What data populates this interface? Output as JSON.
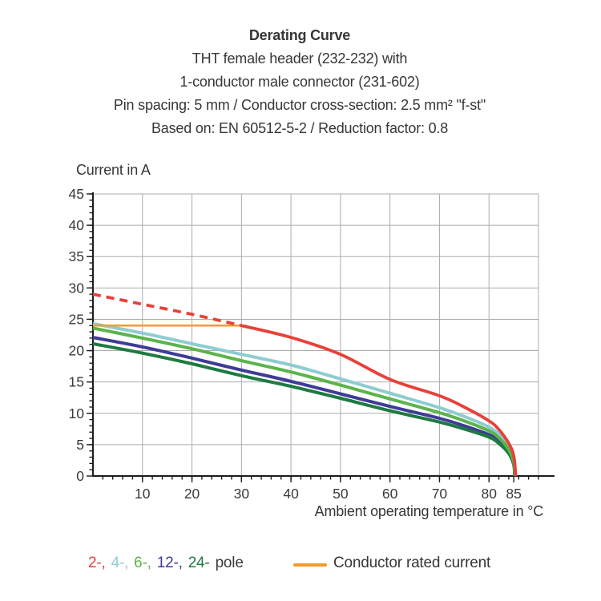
{
  "header": {
    "title": "Derating Curve",
    "lines": [
      "THT female header (232-232) with",
      "1-conductor male connector (231-602)",
      "Pin spacing: 5 mm / Conductor cross-section: 2.5 mm² \"f-st\"",
      "Based on: EN 60512-5-2 / Reduction factor: 0.8"
    ]
  },
  "chart_data": {
    "type": "line",
    "title": "Derating Curve",
    "xlabel": "Ambient operating temperature in °C",
    "ylabel": "Current in A",
    "xlim": [
      0,
      90
    ],
    "ylim": [
      0,
      45
    ],
    "grid": true,
    "x_grid_step": 10,
    "y_grid_step": 5,
    "x_minor_tick_step": 2,
    "y_minor_tick_step": 1,
    "x_major_ticks": [
      10,
      20,
      30,
      40,
      50,
      60,
      70,
      80,
      85
    ],
    "y_major_ticks": [
      0,
      5,
      10,
      15,
      20,
      25,
      30,
      35,
      40,
      45
    ],
    "series": [
      {
        "name": "4-pole",
        "color": "#8fccd1",
        "width": 4,
        "segments": [
          {
            "style": "solid",
            "points": [
              [
                0,
                24.3
              ],
              [
                10,
                22.8
              ],
              [
                20,
                21.1
              ],
              [
                30,
                19.4
              ],
              [
                40,
                17.7
              ],
              [
                50,
                15.5
              ],
              [
                60,
                13.2
              ],
              [
                70,
                10.9
              ],
              [
                75,
                9.5
              ],
              [
                80,
                7.8
              ],
              [
                82,
                6.6
              ],
              [
                84,
                4.6
              ],
              [
                85,
                2.6
              ],
              [
                85.3,
                0
              ]
            ]
          }
        ]
      },
      {
        "name": "12-pole",
        "color": "#3e3c96",
        "width": 4,
        "segments": [
          {
            "style": "solid",
            "points": [
              [
                0,
                22.1
              ],
              [
                10,
                20.6
              ],
              [
                20,
                18.8
              ],
              [
                30,
                16.9
              ],
              [
                40,
                15.1
              ],
              [
                50,
                13.1
              ],
              [
                60,
                11.1
              ],
              [
                70,
                9.2
              ],
              [
                75,
                8.0
              ],
              [
                80,
                6.6
              ],
              [
                82,
                5.6
              ],
              [
                84,
                3.9
              ],
              [
                85,
                2.0
              ],
              [
                85.2,
                0
              ]
            ]
          }
        ]
      },
      {
        "name": "24-pole",
        "color": "#1e7a41",
        "width": 4,
        "segments": [
          {
            "style": "solid",
            "points": [
              [
                0,
                21.1
              ],
              [
                10,
                19.6
              ],
              [
                20,
                17.9
              ],
              [
                30,
                16.0
              ],
              [
                40,
                14.3
              ],
              [
                50,
                12.4
              ],
              [
                60,
                10.4
              ],
              [
                70,
                8.6
              ],
              [
                75,
                7.5
              ],
              [
                80,
                6.2
              ],
              [
                82,
                5.2
              ],
              [
                84,
                3.6
              ],
              [
                85,
                1.8
              ],
              [
                85.2,
                0
              ]
            ]
          }
        ]
      },
      {
        "name": "6-pole",
        "color": "#5cb44c",
        "width": 4,
        "segments": [
          {
            "style": "solid",
            "points": [
              [
                0,
                23.6
              ],
              [
                10,
                22.0
              ],
              [
                20,
                20.3
              ],
              [
                30,
                18.4
              ],
              [
                40,
                16.6
              ],
              [
                50,
                14.5
              ],
              [
                60,
                12.3
              ],
              [
                70,
                10.1
              ],
              [
                75,
                8.8
              ],
              [
                80,
                7.2
              ],
              [
                82,
                6.1
              ],
              [
                84,
                4.2
              ],
              [
                85,
                2.3
              ],
              [
                85.3,
                0
              ]
            ]
          }
        ]
      },
      {
        "name": "Conductor rated current",
        "color": "#f49b2b",
        "width": 2.5,
        "segments": [
          {
            "style": "solid",
            "points": [
              [
                0,
                24
              ],
              [
                31,
                24
              ]
            ]
          }
        ]
      },
      {
        "name": "2-pole",
        "color": "#e8403a",
        "width": 3.8,
        "segments": [
          {
            "style": "dashed",
            "points": [
              [
                0,
                29
              ],
              [
                10,
                27.4
              ],
              [
                20,
                25.8
              ],
              [
                30,
                24
              ]
            ]
          },
          {
            "style": "solid",
            "points": [
              [
                30,
                24
              ],
              [
                40,
                22.1
              ],
              [
                50,
                19.4
              ],
              [
                60,
                15.4
              ],
              [
                70,
                12.8
              ],
              [
                75,
                11.0
              ],
              [
                80,
                8.8
              ],
              [
                82,
                7.4
              ],
              [
                84,
                5.2
              ],
              [
                85,
                3.2
              ],
              [
                85.4,
                0
              ]
            ]
          }
        ]
      }
    ]
  },
  "legend": {
    "poles": [
      {
        "label": "2-,",
        "color": "#e8403a"
      },
      {
        "label": "4-,",
        "color": "#8fccd1"
      },
      {
        "label": "6-,",
        "color": "#5cb44c"
      },
      {
        "label": "12-,",
        "color": "#3e3c96"
      },
      {
        "label": "24-",
        "color": "#1e7a41"
      },
      {
        "label": "pole",
        "color": "#3a3a3a"
      }
    ],
    "rated": {
      "label": "Conductor rated current",
      "color": "#f49b2b"
    }
  },
  "colors": {
    "grid": "#ababab",
    "axis": "#1c1c1c",
    "tick_text": "#3a3a3a"
  }
}
